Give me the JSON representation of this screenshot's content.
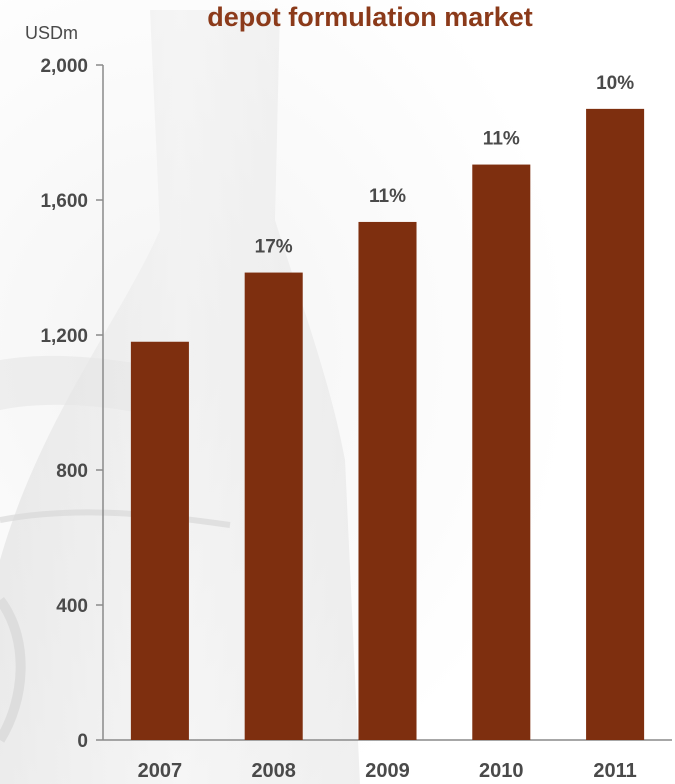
{
  "colors": {
    "bar": "#7e2f0f",
    "title": "#8b3a1a",
    "axis": "#8a8a8a",
    "text": "#4a4a4a"
  },
  "chart_data": {
    "type": "bar",
    "title": "depot formulation market",
    "ylabel": "USDm",
    "xlabel": "",
    "categories": [
      "2007",
      "2008",
      "2009",
      "2010",
      "2011"
    ],
    "values": [
      1180,
      1385,
      1535,
      1705,
      1870
    ],
    "growth_labels": [
      "",
      "17%",
      "11%",
      "11%",
      "10%"
    ],
    "ylim": [
      0,
      2000
    ],
    "yticks": [
      "0",
      "400",
      "800",
      "1,200",
      "1,600",
      "2,000"
    ],
    "ytick_values": [
      0,
      400,
      800,
      1200,
      1600,
      2000
    ],
    "grid": false,
    "legend": "none"
  }
}
